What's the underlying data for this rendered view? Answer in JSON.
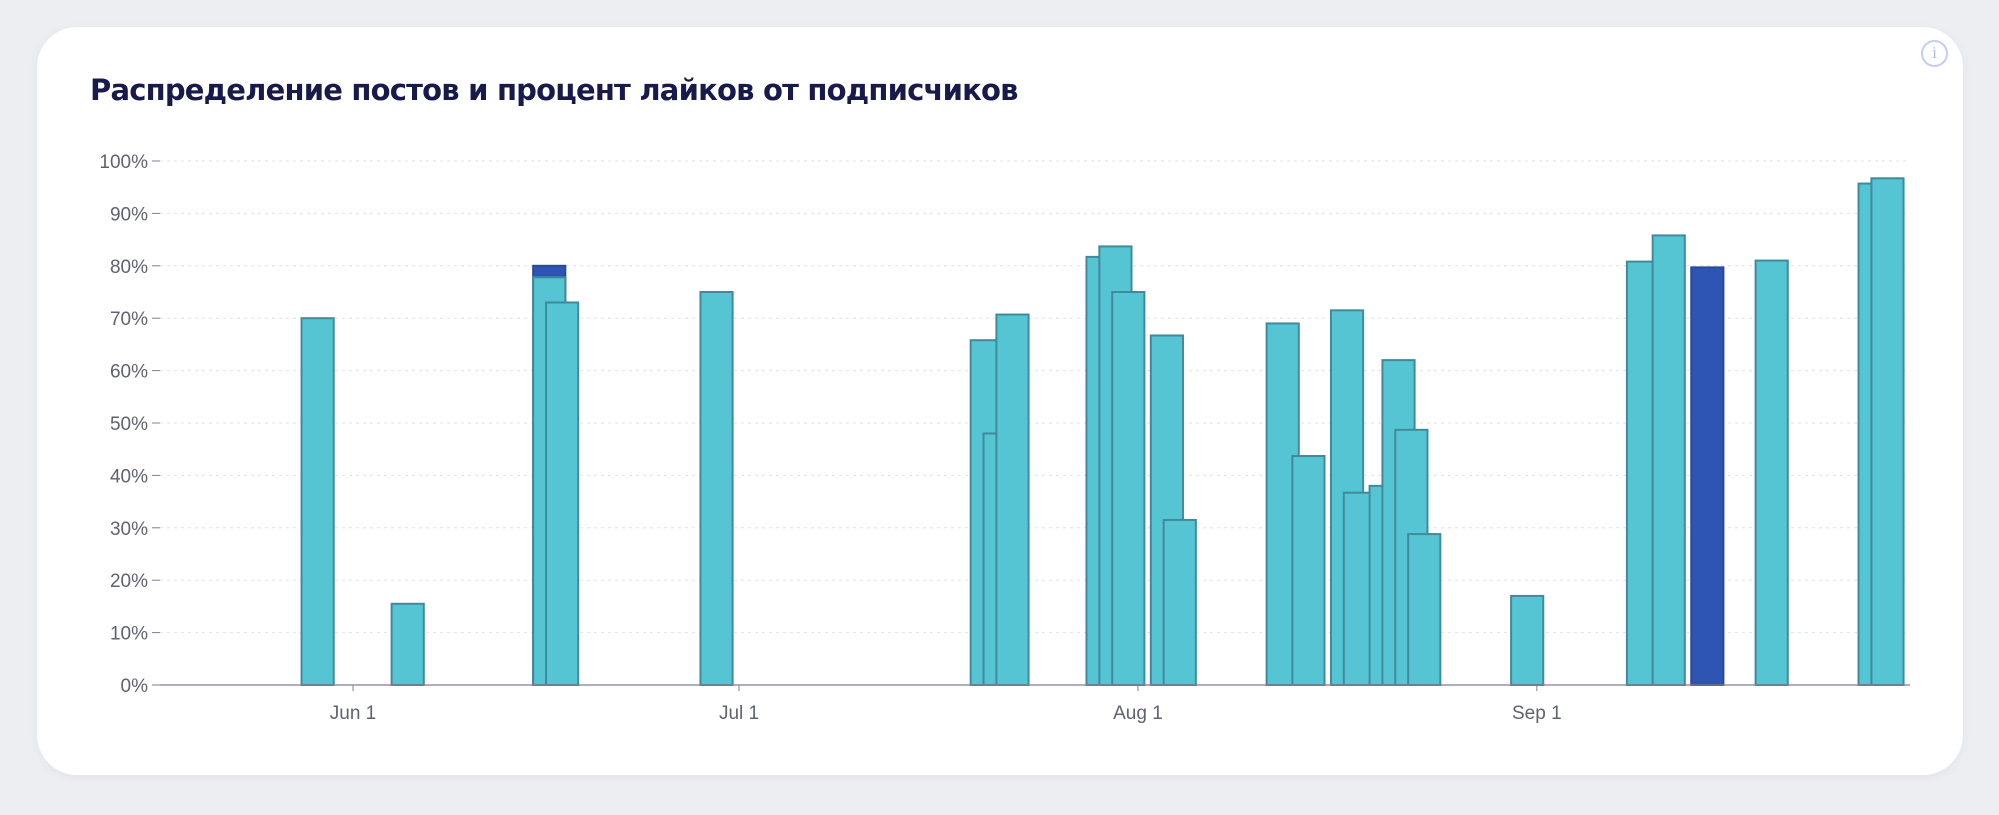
{
  "card": {
    "title": "Распределение постов и процент лайков от подписчиков",
    "info_glyph": "i",
    "info_icon": "info-icon"
  },
  "colors": {
    "bar_fill": "#56c5d3",
    "bar_stroke": "#3f8b9c",
    "highlight_fill": "#2e55b3",
    "highlight_stroke": "#2a4a99",
    "title": "#171a4a"
  },
  "chart_data": {
    "type": "bar",
    "title": "Распределение постов и процент лайков от подписчиков",
    "xlabel": "",
    "ylabel": "",
    "x_axis": "date",
    "xlim": [
      "2024-05-17",
      "2024-09-30"
    ],
    "ylim": [
      0,
      100
    ],
    "y_unit": "%",
    "y_ticks": [
      0,
      10,
      20,
      30,
      40,
      50,
      60,
      70,
      80,
      90,
      100
    ],
    "y_tick_labels": [
      "0%",
      "10%",
      "20%",
      "30%",
      "40%",
      "50%",
      "60%",
      "70%",
      "80%",
      "90%",
      "100%"
    ],
    "x_ticks": [
      {
        "date": "2024-06-01",
        "label": "Jun 1"
      },
      {
        "date": "2024-07-01",
        "label": "Jul 1"
      },
      {
        "date": "2024-08-01",
        "label": "Aug 1"
      },
      {
        "date": "2024-09-01",
        "label": "Sep 1"
      }
    ],
    "grid": true,
    "legend": "none",
    "bar_width_days": 2.5,
    "points": [
      {
        "date": "2024-05-28",
        "value": 70
      },
      {
        "date": "2024-06-04",
        "value": 15.5
      },
      {
        "date": "2024-06-15",
        "value": 80,
        "highlight": true
      },
      {
        "date": "2024-06-15",
        "value": 77.8
      },
      {
        "date": "2024-06-16",
        "value": 73
      },
      {
        "date": "2024-06-28",
        "value": 75
      },
      {
        "date": "2024-07-19",
        "value": 65.8
      },
      {
        "date": "2024-07-20",
        "value": 48
      },
      {
        "date": "2024-07-21",
        "value": 70.7
      },
      {
        "date": "2024-07-28",
        "value": 81.7
      },
      {
        "date": "2024-07-29",
        "value": 83.7
      },
      {
        "date": "2024-07-30",
        "value": 75
      },
      {
        "date": "2024-08-02",
        "value": 66.7
      },
      {
        "date": "2024-08-03",
        "value": 31.5
      },
      {
        "date": "2024-08-11",
        "value": 69
      },
      {
        "date": "2024-08-13",
        "value": 43.7
      },
      {
        "date": "2024-08-16",
        "value": 71.5
      },
      {
        "date": "2024-08-17",
        "value": 36.7
      },
      {
        "date": "2024-08-19",
        "value": 38
      },
      {
        "date": "2024-08-20",
        "value": 62
      },
      {
        "date": "2024-08-21",
        "value": 48.7
      },
      {
        "date": "2024-08-22",
        "value": 28.8
      },
      {
        "date": "2024-08-30",
        "value": 17
      },
      {
        "date": "2024-09-08",
        "value": 80.8
      },
      {
        "date": "2024-09-10",
        "value": 85.8
      },
      {
        "date": "2024-09-13",
        "value": 79.7,
        "highlight": true
      },
      {
        "date": "2024-09-18",
        "value": 81
      },
      {
        "date": "2024-09-26",
        "value": 95.7
      },
      {
        "date": "2024-09-27",
        "value": 96.7
      }
    ]
  }
}
